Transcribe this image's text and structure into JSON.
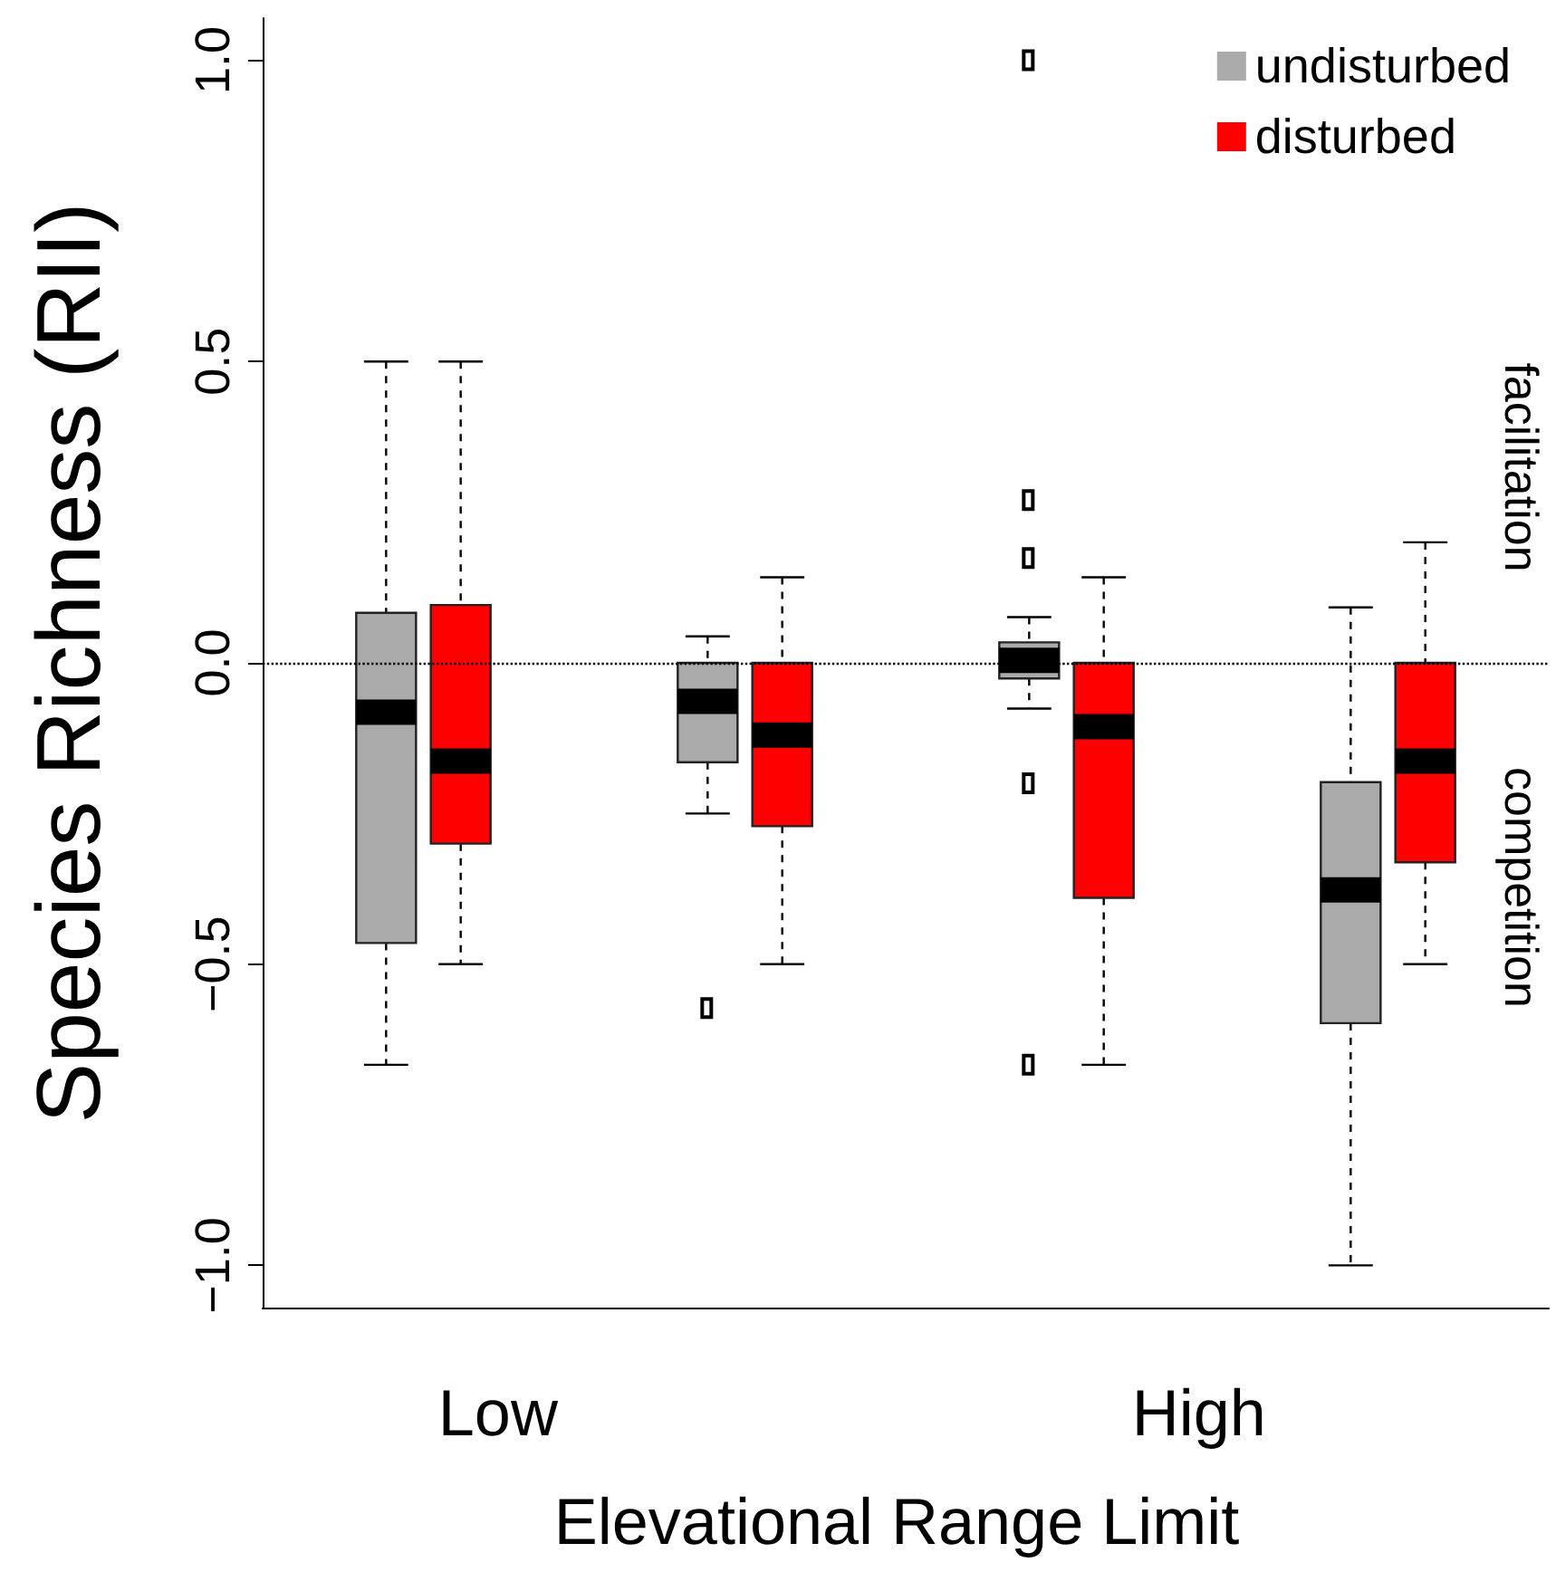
{
  "chart_data": {
    "type": "box",
    "ylabel": "Species Richness (RII)",
    "xlabel": "Elevational Range Limit",
    "categories": [
      null,
      null,
      null,
      null
    ],
    "annotations": [
      "Low",
      "High",
      "facilitation",
      "competition"
    ],
    "series": [
      {
        "name": "undisturbed",
        "color": "#aaaaaa",
        "boxes": [
          {
            "low": -0.667,
            "q1": -0.465,
            "median": -0.082,
            "q3": 0.083,
            "high": 0.5
          },
          {
            "low": -0.25,
            "q1": -0.165,
            "median": -0.064,
            "q3": 0,
            "high": 0.044,
            "outliers": [
              -0.573
            ]
          },
          {
            "low": -0.076,
            "q1": -0.026,
            "median": 0.004,
            "q3": 0.034,
            "high": 0.076,
            "outliers": [
              1.0,
              0.27,
              0.174,
              -0.2,
              -0.667
            ]
          },
          {
            "low": -1.0,
            "q1": -0.598,
            "median": -0.377,
            "q3": -0.198,
            "high": 0.092
          }
        ]
      },
      {
        "name": "disturbed",
        "color": "#ff0000",
        "boxes": [
          {
            "low": -0.5,
            "q1": -0.3,
            "median": -0.163,
            "q3": 0.096,
            "high": 0.5
          },
          {
            "low": -0.5,
            "q1": -0.271,
            "median": -0.12,
            "q3": 0,
            "high": 0.142
          },
          {
            "low": -0.667,
            "q1": -0.39,
            "median": -0.106,
            "q3": 0,
            "high": 0.142
          },
          {
            "low": -0.5,
            "q1": -0.331,
            "median": -0.163,
            "q3": 0,
            "high": 0.2
          }
        ]
      }
    ],
    "ylim": [
      -1.07,
      1.07
    ],
    "yticks": [
      {
        "value": -1,
        "label": "−1.0"
      },
      {
        "value": -0.5,
        "label": "−0.5"
      },
      {
        "value": 0,
        "label": "0.0"
      },
      {
        "value": 0.5,
        "label": "0.5"
      },
      {
        "value": 1,
        "label": "1.0"
      }
    ],
    "ref_lines": [
      {
        "axis": "y",
        "value": 0,
        "line_style": "dotted",
        "color": "#000000"
      }
    ],
    "grid": false,
    "legend": "top right"
  }
}
